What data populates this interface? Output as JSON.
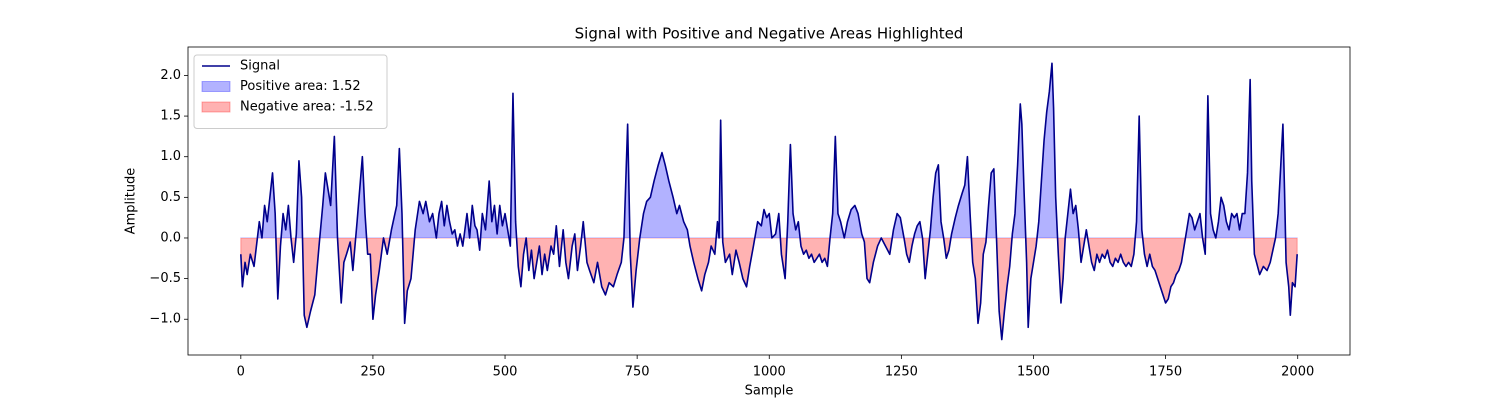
{
  "chart_data": {
    "type": "line",
    "title": "Signal with Positive and Negative Areas Highlighted",
    "x_label": "Sample",
    "y_label": "Amplitude",
    "x": [
      0,
      3,
      8,
      12,
      18,
      25,
      35,
      40,
      45,
      50,
      55,
      60,
      65,
      70,
      75,
      80,
      85,
      90,
      95,
      100,
      105,
      110,
      115,
      120,
      125,
      132,
      140,
      148,
      155,
      160,
      165,
      170,
      177,
      183,
      190,
      195,
      200,
      207,
      212,
      220,
      230,
      235,
      240,
      245,
      250,
      255,
      262,
      270,
      277,
      285,
      295,
      300,
      305,
      310,
      315,
      322,
      330,
      338,
      345,
      350,
      357,
      363,
      370,
      375,
      380,
      385,
      390,
      395,
      400,
      405,
      410,
      415,
      420,
      428,
      433,
      438,
      443,
      447,
      452,
      457,
      463,
      470,
      475,
      480,
      485,
      490,
      495,
      500,
      505,
      510,
      515,
      520,
      525,
      530,
      535,
      540,
      545,
      550,
      555,
      560,
      565,
      570,
      575,
      580,
      587,
      592,
      597,
      603,
      610,
      615,
      620,
      627,
      632,
      637,
      643,
      648,
      655,
      660,
      668,
      675,
      683,
      690,
      697,
      705,
      712,
      720,
      725,
      732,
      737,
      742,
      748,
      755,
      762,
      768,
      775,
      782,
      790,
      797,
      803,
      810,
      818,
      825,
      830,
      838,
      845,
      850,
      857,
      865,
      872,
      878,
      885,
      890,
      897,
      902,
      905,
      908,
      912,
      917,
      925,
      930,
      937,
      943,
      950,
      957,
      963,
      970,
      978,
      985,
      990,
      995,
      1000,
      1005,
      1012,
      1018,
      1023,
      1030,
      1035,
      1040,
      1045,
      1050,
      1055,
      1060,
      1065,
      1070,
      1075,
      1080,
      1085,
      1090,
      1095,
      1100,
      1105,
      1110,
      1115,
      1120,
      1125,
      1130,
      1135,
      1142,
      1148,
      1155,
      1162,
      1168,
      1175,
      1180,
      1185,
      1190,
      1197,
      1205,
      1212,
      1220,
      1228,
      1235,
      1242,
      1248,
      1255,
      1260,
      1265,
      1270,
      1275,
      1280,
      1285,
      1290,
      1295,
      1300,
      1305,
      1310,
      1315,
      1320,
      1325,
      1330,
      1335,
      1340,
      1345,
      1352,
      1358,
      1365,
      1370,
      1375,
      1380,
      1385,
      1390,
      1395,
      1400,
      1405,
      1410,
      1415,
      1420,
      1425,
      1430,
      1435,
      1440,
      1445,
      1450,
      1455,
      1460,
      1465,
      1470,
      1475,
      1478,
      1482,
      1487,
      1490,
      1495,
      1500,
      1505,
      1510,
      1515,
      1520,
      1525,
      1530,
      1535,
      1538,
      1542,
      1547,
      1552,
      1556,
      1560,
      1565,
      1570,
      1575,
      1580,
      1585,
      1590,
      1595,
      1600,
      1605,
      1610,
      1615,
      1620,
      1625,
      1630,
      1635,
      1640,
      1645,
      1650,
      1655,
      1660,
      1665,
      1670,
      1675,
      1680,
      1685,
      1690,
      1695,
      1700,
      1705,
      1710,
      1715,
      1720,
      1725,
      1730,
      1735,
      1740,
      1745,
      1750,
      1755,
      1760,
      1765,
      1770,
      1775,
      1780,
      1785,
      1790,
      1795,
      1800,
      1805,
      1810,
      1815,
      1820,
      1825,
      1830,
      1835,
      1840,
      1845,
      1850,
      1855,
      1860,
      1865,
      1870,
      1875,
      1880,
      1885,
      1890,
      1895,
      1900,
      1905,
      1910,
      1913,
      1918,
      1922,
      1928,
      1935,
      1942,
      1948,
      1953,
      1958,
      1963,
      1968,
      1972,
      1975,
      1978,
      1983,
      1986,
      1990,
      1995,
      1999
    ],
    "series": [
      {
        "name": "Signal",
        "color": "#00008b",
        "values": [
          -0.2,
          -0.6,
          -0.3,
          -0.45,
          -0.2,
          -0.35,
          0.2,
          0.0,
          0.4,
          0.2,
          0.5,
          0.8,
          0.3,
          -0.75,
          -0.1,
          0.3,
          0.1,
          0.4,
          0.0,
          -0.3,
          0.05,
          0.95,
          0.5,
          -0.95,
          -1.1,
          -0.9,
          -0.7,
          -0.1,
          0.4,
          0.8,
          0.6,
          0.4,
          1.25,
          0.0,
          -0.8,
          -0.3,
          -0.2,
          -0.05,
          -0.4,
          0.2,
          1.0,
          0.3,
          -0.2,
          -0.2,
          -1.0,
          -0.7,
          -0.4,
          0.0,
          -0.2,
          0.1,
          0.4,
          1.1,
          0.3,
          -1.05,
          -0.65,
          -0.5,
          0.1,
          0.45,
          0.3,
          0.45,
          0.2,
          0.3,
          0.0,
          0.3,
          0.45,
          0.15,
          0.4,
          0.2,
          0.05,
          0.1,
          -0.1,
          0.05,
          -0.1,
          0.3,
          0.0,
          0.4,
          0.15,
          0.1,
          -0.15,
          0.3,
          0.1,
          0.7,
          0.2,
          0.4,
          0.05,
          0.4,
          0.15,
          0.3,
          0.1,
          -0.1,
          1.78,
          0.2,
          -0.35,
          -0.6,
          -0.2,
          0.0,
          -0.4,
          -0.15,
          -0.5,
          -0.3,
          -0.1,
          -0.45,
          -0.2,
          -0.4,
          -0.1,
          -0.2,
          0.15,
          -0.35,
          0.1,
          -0.3,
          -0.5,
          -0.1,
          0.05,
          -0.4,
          -0.1,
          0.2,
          -0.3,
          -0.4,
          -0.55,
          -0.3,
          -0.6,
          -0.7,
          -0.55,
          -0.6,
          -0.45,
          -0.3,
          0.0,
          1.4,
          -0.2,
          -0.85,
          -0.4,
          0.0,
          0.3,
          0.45,
          0.5,
          0.7,
          0.9,
          1.05,
          0.9,
          0.7,
          0.5,
          0.3,
          0.4,
          0.2,
          0.1,
          -0.1,
          -0.3,
          -0.5,
          -0.65,
          -0.45,
          -0.3,
          -0.1,
          -0.2,
          0.2,
          0.0,
          1.45,
          -0.05,
          -0.3,
          -0.2,
          -0.45,
          -0.15,
          -0.3,
          -0.5,
          -0.6,
          -0.35,
          -0.1,
          0.2,
          0.15,
          0.35,
          0.25,
          0.3,
          0.0,
          0.05,
          0.3,
          -0.2,
          -0.5,
          0.2,
          1.15,
          0.3,
          0.1,
          0.2,
          -0.1,
          -0.2,
          -0.15,
          -0.25,
          -0.2,
          -0.3,
          -0.25,
          -0.2,
          -0.3,
          -0.25,
          -0.35,
          0.0,
          0.3,
          1.25,
          0.3,
          0.2,
          0.0,
          0.2,
          0.35,
          0.4,
          0.3,
          0.05,
          -0.05,
          -0.5,
          -0.55,
          -0.3,
          -0.1,
          0.0,
          -0.1,
          -0.2,
          0.1,
          0.3,
          0.25,
          0.0,
          -0.2,
          -0.3,
          -0.1,
          0.05,
          0.15,
          0.2,
          0.0,
          -0.5,
          -0.2,
          0.1,
          0.5,
          0.8,
          0.9,
          0.2,
          0.0,
          -0.25,
          -0.15,
          0.05,
          0.25,
          0.4,
          0.55,
          0.65,
          1.0,
          0.3,
          -0.3,
          -0.5,
          -1.05,
          -0.8,
          -0.2,
          -0.05,
          0.4,
          0.8,
          0.85,
          0.0,
          -0.9,
          -1.25,
          -0.9,
          -0.6,
          -0.35,
          0.05,
          0.3,
          0.9,
          1.65,
          1.4,
          0.6,
          -0.3,
          -1.1,
          -0.5,
          -0.3,
          -0.1,
          0.2,
          0.7,
          1.2,
          1.55,
          1.8,
          2.15,
          1.6,
          0.5,
          -0.2,
          -0.8,
          -0.5,
          0.0,
          0.3,
          0.6,
          0.3,
          0.4,
          0.1,
          -0.3,
          -0.1,
          0.1,
          -0.1,
          -0.3,
          -0.4,
          -0.2,
          -0.3,
          -0.2,
          -0.25,
          -0.15,
          -0.3,
          -0.35,
          -0.25,
          -0.3,
          -0.2,
          -0.3,
          -0.35,
          -0.3,
          -0.35,
          -0.2,
          0.2,
          1.5,
          0.1,
          -0.2,
          -0.35,
          -0.2,
          -0.35,
          -0.4,
          -0.5,
          -0.6,
          -0.7,
          -0.8,
          -0.75,
          -0.6,
          -0.55,
          -0.45,
          -0.4,
          -0.3,
          -0.1,
          0.1,
          0.3,
          0.25,
          0.1,
          0.2,
          0.3,
          0.0,
          -0.2,
          1.75,
          0.3,
          0.1,
          0.0,
          0.2,
          0.5,
          0.4,
          0.2,
          0.1,
          0.3,
          0.25,
          0.3,
          0.1,
          0.3,
          0.3,
          0.8,
          1.95,
          0.7,
          -0.2,
          -0.3,
          -0.45,
          -0.35,
          -0.4,
          -0.3,
          -0.15,
          0.0,
          0.3,
          0.9,
          1.4,
          0.6,
          -0.3,
          -0.6,
          -0.95,
          -0.55,
          -0.6,
          -0.2
        ]
      }
    ],
    "fills": [
      {
        "name": "Positive area: 1.52",
        "color": "#0000ff",
        "side": "above"
      },
      {
        "name": "Negative area: -1.52",
        "color": "#ff0000",
        "side": "below"
      }
    ],
    "fill_opacity": 0.3,
    "xlim": [
      -99.95,
      2098.95
    ],
    "xticks": [
      0,
      250,
      500,
      750,
      1000,
      1250,
      1500,
      1750,
      2000
    ],
    "ylim": [
      -1.44,
      2.35
    ],
    "yticks": [
      {
        "value": -1.0,
        "label": "−1.0"
      },
      {
        "value": -0.5,
        "label": "−0.5"
      },
      {
        "value": 0.0,
        "label": "0.0"
      },
      {
        "value": 0.5,
        "label": "0.5"
      },
      {
        "value": 1.0,
        "label": "1.0"
      },
      {
        "value": 1.5,
        "label": "1.5"
      },
      {
        "value": 2.0,
        "label": "2.0"
      }
    ],
    "legend": "upper left"
  }
}
